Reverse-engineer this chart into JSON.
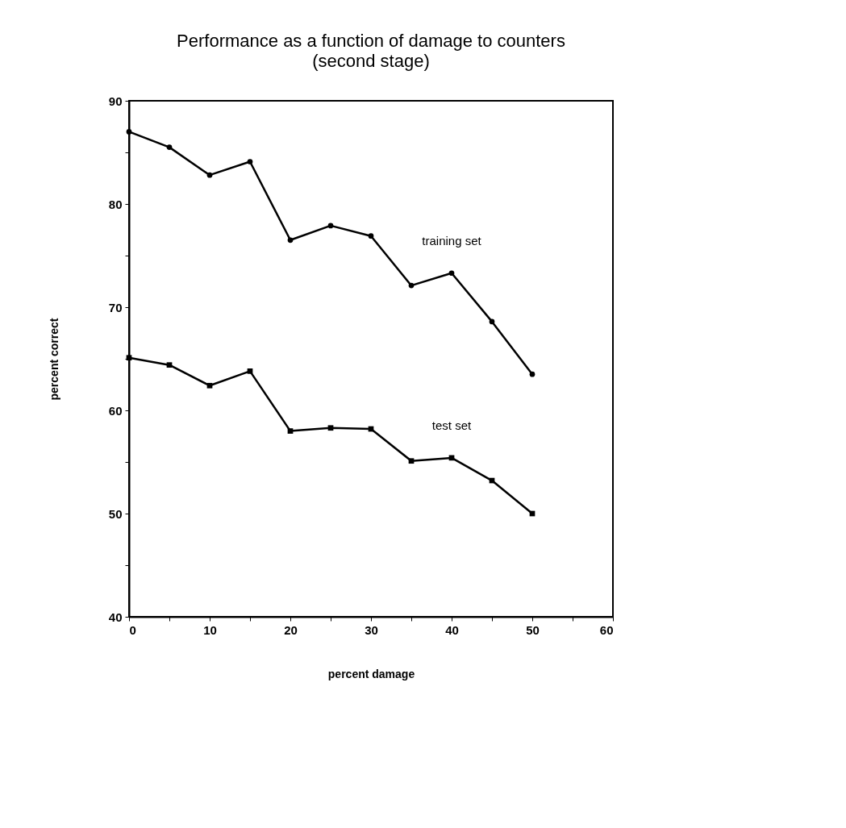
{
  "chart_data": {
    "type": "line",
    "title": "Performance as a function of damage to counters",
    "subtitle": "(second stage)",
    "xlabel": "percent damage",
    "ylabel": "percent correct",
    "x": [
      0,
      5,
      10,
      15,
      20,
      25,
      30,
      35,
      40,
      45,
      50
    ],
    "series": [
      {
        "name": "training set",
        "color": "#000000",
        "marker": "circle",
        "values": [
          87.0,
          85.5,
          82.8,
          84.1,
          76.5,
          77.9,
          76.9,
          72.1,
          73.3,
          68.6,
          63.5
        ]
      },
      {
        "name": "test set",
        "color": "#000000",
        "marker": "square",
        "values": [
          65.1,
          64.4,
          62.4,
          63.8,
          58.0,
          58.3,
          58.2,
          55.1,
          55.4,
          53.2,
          50.0
        ]
      }
    ],
    "xlim": [
      0,
      60
    ],
    "ylim": [
      40,
      90
    ],
    "xticks": [
      0,
      {
        "value": 5,
        "label": null
      },
      10,
      {
        "value": 15,
        "label": null
      },
      20,
      {
        "value": 25,
        "label": null
      },
      30,
      {
        "value": 35,
        "label": null
      },
      40,
      {
        "value": 45,
        "label": null
      },
      50,
      {
        "value": 55,
        "label": null
      },
      60
    ],
    "yticks": [
      40,
      {
        "value": 45,
        "label": null
      },
      50,
      {
        "value": 55,
        "label": null
      },
      60,
      {
        "value": 65,
        "label": null
      },
      70,
      {
        "value": 75,
        "label": null
      },
      80,
      {
        "value": 85,
        "label": null
      },
      90
    ],
    "grid": false,
    "line_style": "solid"
  }
}
